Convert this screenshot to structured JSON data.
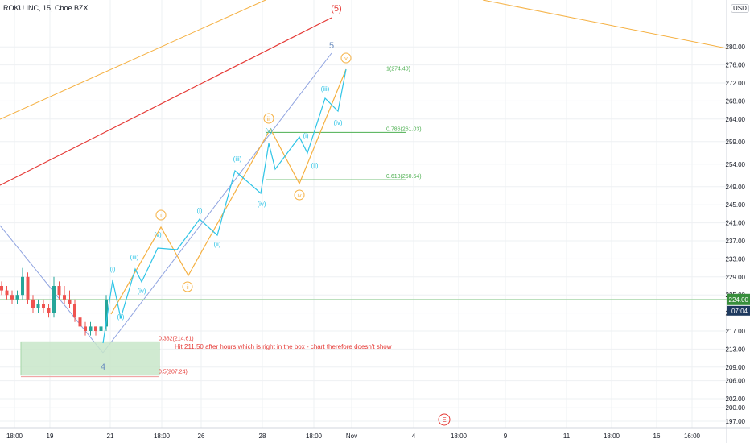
{
  "header": {
    "title": "ROKU INC, 15, Cboe BZX",
    "currency": "USD"
  },
  "colors": {
    "grid": "#eef0f3",
    "axis": "#d1d4dc",
    "orange": "#f5b041",
    "red": "#e53935",
    "blue": "#8fa3e0",
    "cyan": "#2ec4e6",
    "green": "#4caf50",
    "box": "#a5d6a7",
    "up": "#26a69a",
    "down": "#ef5350",
    "label": "#131722",
    "wave5": "#6c8ebf",
    "price_tag": "#388e3c"
  },
  "chart_data": {
    "type": "candlestick",
    "symbol": "ROKU INC",
    "interval": "15",
    "exchange": "Cboe BZX",
    "y_ticks": [
      280.0,
      276.0,
      272.0,
      268.0,
      264.0,
      259.0,
      254.0,
      249.0,
      245.0,
      241.0,
      237.0,
      233.0,
      229.0,
      225.0,
      221.0,
      217.0,
      213.0,
      209.0,
      206.0,
      202.0,
      200.0,
      197.0
    ],
    "x_ticks": [
      "18:00",
      "19",
      "21",
      "18:00",
      "26",
      "28",
      "18:00",
      "Nov",
      "4",
      "18:00",
      "9",
      "11",
      "18:00",
      "16",
      "16:00"
    ],
    "current_price": "224.00",
    "countdown": "07:04",
    "fib_levels": [
      {
        "label": "1(274.40)",
        "value": 274.4
      },
      {
        "label": "0.786(261.03)",
        "value": 261.03
      },
      {
        "label": "0.618(250.54)",
        "value": 250.54
      },
      {
        "label": "0.382(214.61)",
        "value": 214.61
      },
      {
        "label": "0.5(207.24)",
        "value": 207.24
      }
    ],
    "annotation": "Hit 211.50 after hours which is right in the box - chart therefore doesn't show",
    "wave_labels": {
      "major_top": "(5)",
      "major_5": "5",
      "major_4": "4",
      "future": "E",
      "orange": [
        "i",
        "ii",
        "iii",
        "iv",
        "v"
      ],
      "cyan": [
        "(i)",
        "(ii)",
        "(iii)",
        "(iv)",
        "(v)",
        "(i)",
        "(ii)",
        "(iii)",
        "(iv)",
        "(v)",
        "(i)",
        "(ii)",
        "(iii)",
        "(iv)"
      ]
    },
    "candles": [
      {
        "o": 227,
        "h": 228,
        "l": 225,
        "c": 226
      },
      {
        "o": 226,
        "h": 227,
        "l": 224,
        "c": 225
      },
      {
        "o": 225,
        "h": 226,
        "l": 223,
        "c": 224
      },
      {
        "o": 224,
        "h": 226,
        "l": 223,
        "c": 225
      },
      {
        "o": 225,
        "h": 231,
        "l": 224,
        "c": 229
      },
      {
        "o": 229,
        "h": 230,
        "l": 223,
        "c": 224
      },
      {
        "o": 224,
        "h": 225,
        "l": 221,
        "c": 222
      },
      {
        "o": 222,
        "h": 224,
        "l": 221,
        "c": 223
      },
      {
        "o": 223,
        "h": 224,
        "l": 221,
        "c": 222
      },
      {
        "o": 222,
        "h": 223,
        "l": 220,
        "c": 221
      },
      {
        "o": 221,
        "h": 229,
        "l": 220,
        "c": 227
      },
      {
        "o": 227,
        "h": 228,
        "l": 224,
        "c": 225
      },
      {
        "o": 225,
        "h": 227,
        "l": 223,
        "c": 224
      },
      {
        "o": 224,
        "h": 226,
        "l": 222,
        "c": 223
      },
      {
        "o": 223,
        "h": 224,
        "l": 219,
        "c": 220
      },
      {
        "o": 220,
        "h": 222,
        "l": 217,
        "c": 218
      },
      {
        "o": 218,
        "h": 219,
        "l": 216,
        "c": 217
      },
      {
        "o": 217,
        "h": 219,
        "l": 216,
        "c": 218
      },
      {
        "o": 218,
        "h": 218,
        "l": 216,
        "c": 217
      },
      {
        "o": 217,
        "h": 219,
        "l": 216,
        "c": 218
      },
      {
        "o": 218,
        "h": 225,
        "l": 217,
        "c": 224
      }
    ]
  }
}
